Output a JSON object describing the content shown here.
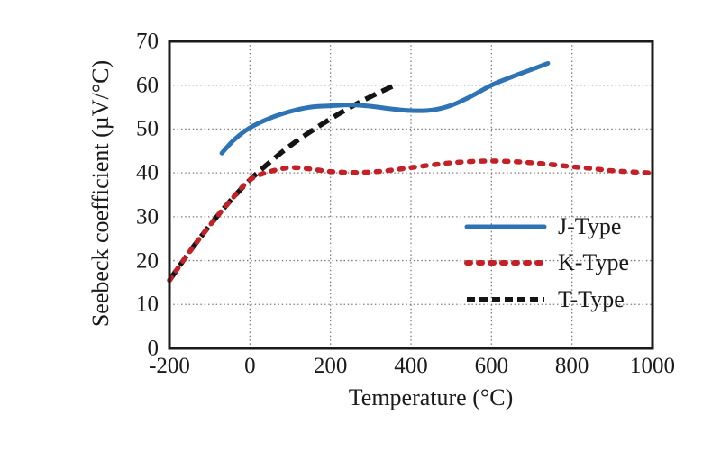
{
  "chart_data": {
    "type": "line",
    "title": "",
    "xlabel": "Temperature (°C)",
    "ylabel": "Seebeck coefficient (µV/°C)",
    "xlim": [
      -200,
      1000
    ],
    "ylim": [
      0,
      70
    ],
    "x_ticks": [
      -200,
      0,
      200,
      400,
      600,
      800,
      1000
    ],
    "y_ticks": [
      0,
      10,
      20,
      30,
      40,
      50,
      60,
      70
    ],
    "grid": true,
    "grid_style": "dotted",
    "grid_color": "#7d7d7d",
    "axis_color": "#1a1a1a",
    "text_color": "#1a1a1a",
    "legend_position": "inside lower right",
    "series": [
      {
        "name": "J-Type",
        "color": "#2E74B5",
        "style": "solid",
        "x": [
          -70,
          -40,
          0,
          50,
          100,
          150,
          200,
          250,
          300,
          350,
          400,
          450,
          500,
          550,
          600,
          650,
          700,
          740
        ],
        "y": [
          44.5,
          47.5,
          50.3,
          52.5,
          54.0,
          55.0,
          55.3,
          55.5,
          55.2,
          54.6,
          54.2,
          54.3,
          55.4,
          57.5,
          60.0,
          61.9,
          63.6,
          65.0
        ]
      },
      {
        "name": "K-Type",
        "color": "#C32127",
        "style": "dotted",
        "x": [
          -200,
          -150,
          -100,
          -50,
          0,
          50,
          100,
          150,
          200,
          250,
          300,
          350,
          400,
          450,
          500,
          550,
          600,
          650,
          700,
          750,
          800,
          850,
          900,
          990
        ],
        "y": [
          15.5,
          22.0,
          28.0,
          33.5,
          38.4,
          40.3,
          41.2,
          40.9,
          40.3,
          40.1,
          40.2,
          40.6,
          41.2,
          41.8,
          42.3,
          42.6,
          42.7,
          42.6,
          42.3,
          41.9,
          41.4,
          41.0,
          40.5,
          40.0
        ]
      },
      {
        "name": "T-Type",
        "color": "#141414",
        "style": "dashed",
        "x": [
          -200,
          -150,
          -100,
          -50,
          0,
          50,
          100,
          150,
          200,
          250,
          300,
          360
        ],
        "y": [
          15.5,
          22.0,
          28.0,
          33.5,
          38.4,
          42.5,
          46.2,
          49.4,
          52.3,
          55.0,
          57.4,
          60.0
        ]
      }
    ]
  }
}
